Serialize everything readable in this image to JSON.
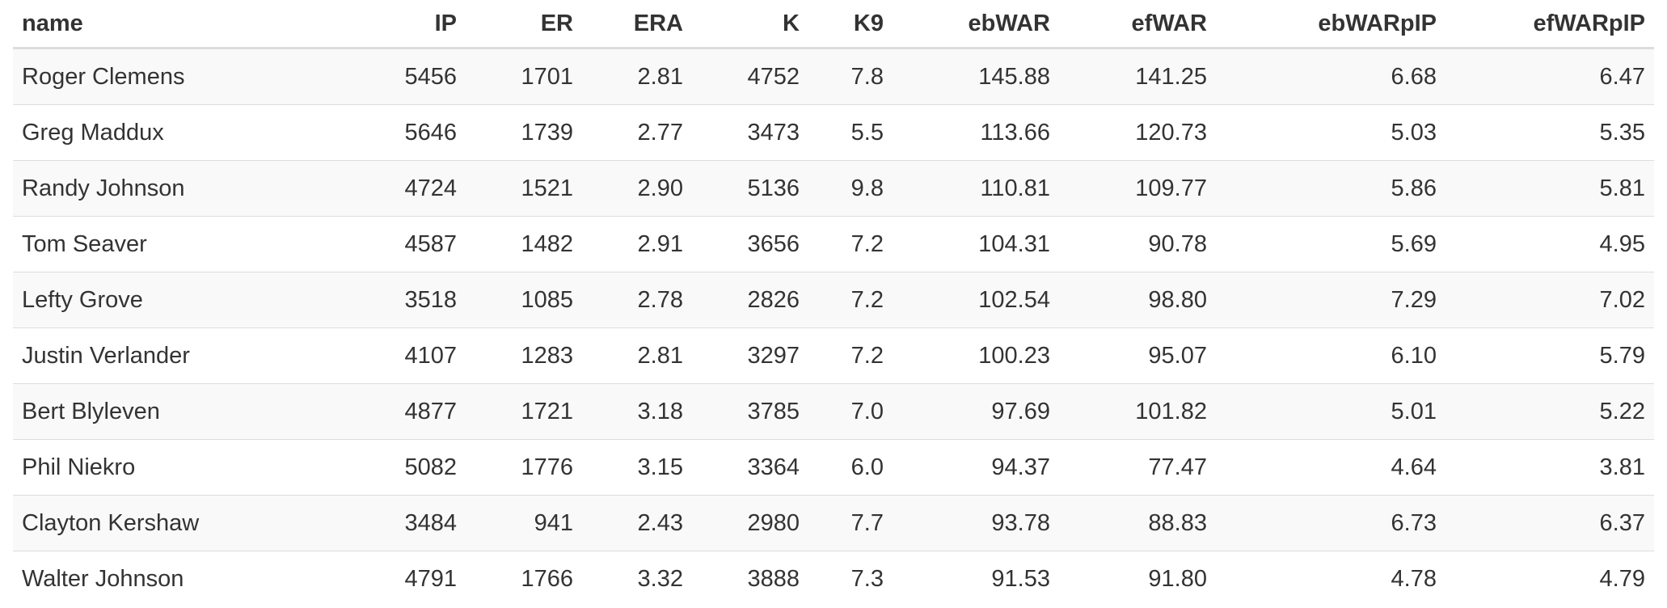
{
  "table": {
    "headers": [
      "name",
      "IP",
      "ER",
      "ERA",
      "K",
      "K9",
      "ebWAR",
      "efWAR",
      "ebWARpIP",
      "efWARpIP"
    ],
    "rows": [
      [
        "Roger Clemens",
        "5456",
        "1701",
        "2.81",
        "4752",
        "7.8",
        "145.88",
        "141.25",
        "6.68",
        "6.47"
      ],
      [
        "Greg Maddux",
        "5646",
        "1739",
        "2.77",
        "3473",
        "5.5",
        "113.66",
        "120.73",
        "5.03",
        "5.35"
      ],
      [
        "Randy Johnson",
        "4724",
        "1521",
        "2.90",
        "5136",
        "9.8",
        "110.81",
        "109.77",
        "5.86",
        "5.81"
      ],
      [
        "Tom Seaver",
        "4587",
        "1482",
        "2.91",
        "3656",
        "7.2",
        "104.31",
        "90.78",
        "5.69",
        "4.95"
      ],
      [
        "Lefty Grove",
        "3518",
        "1085",
        "2.78",
        "2826",
        "7.2",
        "102.54",
        "98.80",
        "7.29",
        "7.02"
      ],
      [
        "Justin Verlander",
        "4107",
        "1283",
        "2.81",
        "3297",
        "7.2",
        "100.23",
        "95.07",
        "6.10",
        "5.79"
      ],
      [
        "Bert Blyleven",
        "4877",
        "1721",
        "3.18",
        "3785",
        "7.0",
        "97.69",
        "101.82",
        "5.01",
        "5.22"
      ],
      [
        "Phil Niekro",
        "5082",
        "1776",
        "3.15",
        "3364",
        "6.0",
        "94.37",
        "77.47",
        "4.64",
        "3.81"
      ],
      [
        "Clayton Kershaw",
        "3484",
        "941",
        "2.43",
        "2980",
        "7.7",
        "93.78",
        "88.83",
        "6.73",
        "6.37"
      ],
      [
        "Walter Johnson",
        "4791",
        "1766",
        "3.32",
        "3888",
        "7.3",
        "91.53",
        "91.80",
        "4.78",
        "4.79"
      ]
    ]
  }
}
